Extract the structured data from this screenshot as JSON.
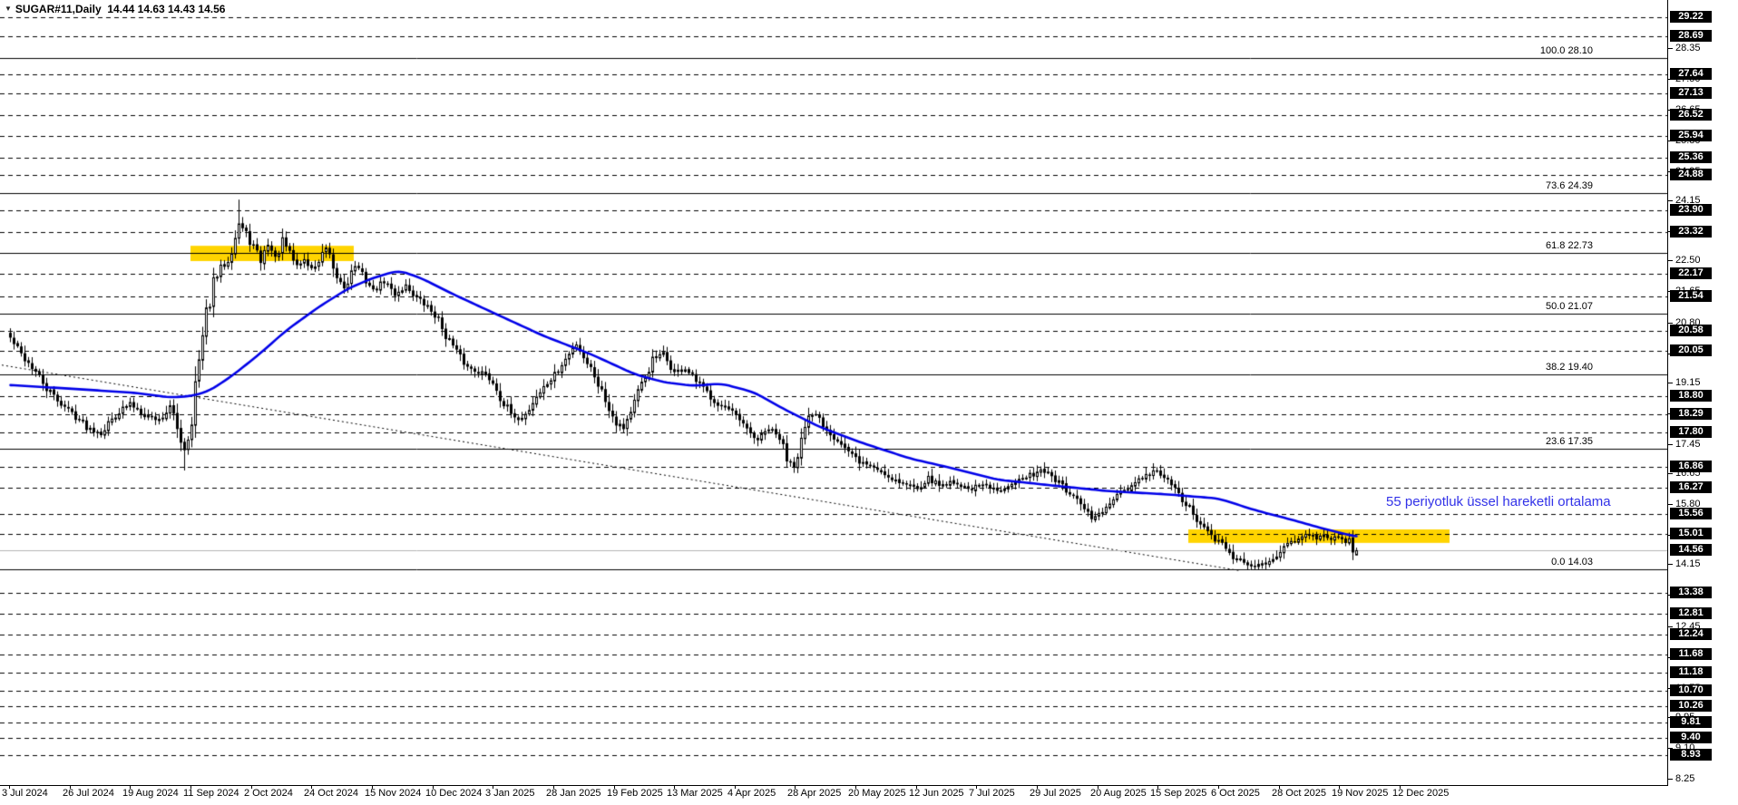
{
  "window": {
    "dropdown_icon": "▼",
    "symbol_label": "SUGAR#11,Daily",
    "ohlc_text": "14.44 14.63 14.43 14.56"
  },
  "annotation": {
    "text": "55 periyotluk üssel hareketli ortalama"
  },
  "colors": {
    "background": "#ffffff",
    "candle_outline": "#000000",
    "candle_up_fill": "#ffffff",
    "candle_down_fill": "#000000",
    "ema_line": "#0000e8",
    "annotation_text": "#3232e8",
    "level_line": "#000000",
    "fib_line": "#000000",
    "highlight_zone": "#ffd400",
    "current_price_line": "#b4b4b4",
    "flag_bg": "#000000",
    "flag_text": "#ffffff",
    "axis_text": "#000000"
  },
  "chart_data": {
    "type": "candlestick",
    "symbol": "SUGAR#11",
    "timeframe": "Daily",
    "title": "SUGAR#11,Daily",
    "last_ohlc": {
      "open": 14.44,
      "high": 14.63,
      "low": 14.43,
      "close": 14.56
    },
    "current_price": 14.56,
    "ylim": [
      8.1,
      29.69
    ],
    "candle_count": 372,
    "x_axis_dates": [
      "3 Jul 2024",
      "26 Jul 2024",
      "19 Aug 2024",
      "11 Sep 2024",
      "2 Oct 2024",
      "24 Oct 2024",
      "15 Nov 2024",
      "10 Dec 2024",
      "3 Jan 2025",
      "28 Jan 2025",
      "19 Feb 2025",
      "13 Mar 2025",
      "4 Apr 2025",
      "28 Apr 2025",
      "20 May 2025",
      "12 Jun 2025",
      "7 Jul 2025",
      "29 Jul 2025",
      "20 Aug 2025",
      "15 Sep 2025",
      "6 Oct 2025",
      "28 Oct 2025",
      "19 Nov 2025",
      "12 Dec 2025"
    ],
    "y_axis_plain_ticks": [
      28.35,
      27.5,
      26.65,
      25.8,
      24.95,
      24.15,
      23.3,
      22.5,
      21.65,
      20.8,
      19.95,
      19.15,
      18.3,
      17.45,
      16.65,
      15.8,
      14.95,
      14.15,
      13.3,
      12.45,
      11.6,
      10.75,
      9.95,
      9.1,
      8.25
    ],
    "horizontal_levels": [
      29.22,
      28.69,
      27.64,
      27.13,
      26.52,
      25.94,
      25.36,
      24.88,
      23.9,
      23.32,
      22.17,
      21.54,
      20.58,
      20.05,
      18.8,
      18.29,
      17.8,
      16.86,
      16.27,
      15.56,
      15.01,
      13.38,
      12.81,
      12.24,
      11.68,
      11.18,
      10.7,
      10.26,
      9.81,
      9.4,
      8.93
    ],
    "fibonacci_levels": [
      {
        "level": "100.0",
        "price": 28.1
      },
      {
        "level": "73.6",
        "price": 24.39
      },
      {
        "level": "61.8",
        "price": 22.73
      },
      {
        "level": "50.0",
        "price": 21.07
      },
      {
        "level": "38.2",
        "price": 19.4
      },
      {
        "level": "23.6",
        "price": 17.35
      },
      {
        "level": "0.0",
        "price": 14.03
      }
    ],
    "highlight_zones": [
      {
        "from_index": 50,
        "to_index": 95,
        "price_top": 22.93,
        "price_bottom": 22.51
      },
      {
        "from_index": 325,
        "to_index": 397,
        "price_top": 15.13,
        "price_bottom": 14.76
      }
    ],
    "trendline": {
      "from_index": -2,
      "from_price": 19.65,
      "to_index": 339,
      "to_price": 14.0,
      "style": "dotted"
    },
    "ema": {
      "period": 55,
      "anchors": [
        [
          0,
          19.1
        ],
        [
          20,
          18.98
        ],
        [
          35,
          18.88
        ],
        [
          44,
          18.76
        ],
        [
          50,
          18.8
        ],
        [
          55,
          18.95
        ],
        [
          61,
          19.35
        ],
        [
          68,
          19.9
        ],
        [
          76,
          20.6
        ],
        [
          85,
          21.25
        ],
        [
          93,
          21.75
        ],
        [
          100,
          22.05
        ],
        [
          107,
          22.25
        ],
        [
          113,
          22.05
        ],
        [
          122,
          21.6
        ],
        [
          135,
          21.0
        ],
        [
          147,
          20.45
        ],
        [
          160,
          19.95
        ],
        [
          172,
          19.4
        ],
        [
          180,
          19.18
        ],
        [
          188,
          19.08
        ],
        [
          196,
          19.14
        ],
        [
          205,
          18.9
        ],
        [
          213,
          18.45
        ],
        [
          223,
          17.95
        ],
        [
          235,
          17.5
        ],
        [
          248,
          17.08
        ],
        [
          258,
          16.85
        ],
        [
          272,
          16.5
        ],
        [
          288,
          16.33
        ],
        [
          303,
          16.18
        ],
        [
          318,
          16.1
        ],
        [
          333,
          15.98
        ],
        [
          343,
          15.66
        ],
        [
          353,
          15.4
        ],
        [
          363,
          15.12
        ],
        [
          371,
          14.93
        ]
      ]
    },
    "candles": {
      "close_anchors": [
        [
          0,
          20.4
        ],
        [
          3,
          19.95
        ],
        [
          6,
          19.6
        ],
        [
          10,
          19.0
        ],
        [
          14,
          18.6
        ],
        [
          17,
          18.35
        ],
        [
          21,
          17.95
        ],
        [
          25,
          17.8
        ],
        [
          29,
          18.3
        ],
        [
          33,
          18.6
        ],
        [
          37,
          18.3
        ],
        [
          41,
          18.15
        ],
        [
          44,
          18.5
        ],
        [
          46,
          17.9
        ],
        [
          48,
          17.35
        ],
        [
          49,
          17.7
        ],
        [
          50,
          18.3
        ],
        [
          51,
          19.1
        ],
        [
          52,
          19.7
        ],
        [
          54,
          21.0
        ],
        [
          56,
          21.9
        ],
        [
          58,
          22.3
        ],
        [
          60,
          22.6
        ],
        [
          62,
          23.2
        ],
        [
          63,
          23.55
        ],
        [
          65,
          23.25
        ],
        [
          67,
          22.9
        ],
        [
          69,
          22.5
        ],
        [
          71,
          23.0
        ],
        [
          73,
          22.6
        ],
        [
          75,
          23.1
        ],
        [
          77,
          22.7
        ],
        [
          79,
          22.4
        ],
        [
          81,
          22.55
        ],
        [
          83,
          22.3
        ],
        [
          85,
          22.5
        ],
        [
          87,
          22.85
        ],
        [
          89,
          22.2
        ],
        [
          92,
          21.8
        ],
        [
          95,
          22.4
        ],
        [
          98,
          22.0
        ],
        [
          100,
          21.7
        ],
        [
          103,
          21.95
        ],
        [
          106,
          21.6
        ],
        [
          109,
          21.85
        ],
        [
          112,
          21.5
        ],
        [
          115,
          21.25
        ],
        [
          117,
          21.05
        ],
        [
          120,
          20.5
        ],
        [
          123,
          20.0
        ],
        [
          126,
          19.6
        ],
        [
          130,
          19.45
        ],
        [
          133,
          19.2
        ],
        [
          136,
          18.6
        ],
        [
          139,
          18.15
        ],
        [
          142,
          18.3
        ],
        [
          145,
          18.8
        ],
        [
          148,
          19.15
        ],
        [
          151,
          19.5
        ],
        [
          154,
          19.95
        ],
        [
          156,
          20.25
        ],
        [
          158,
          19.9
        ],
        [
          161,
          19.4
        ],
        [
          164,
          18.7
        ],
        [
          167,
          18.1
        ],
        [
          169,
          17.95
        ],
        [
          171,
          18.4
        ],
        [
          174,
          19.1
        ],
        [
          177,
          19.8
        ],
        [
          180,
          19.95
        ],
        [
          183,
          19.45
        ],
        [
          186,
          19.55
        ],
        [
          189,
          19.2
        ],
        [
          192,
          18.9
        ],
        [
          195,
          18.6
        ],
        [
          198,
          18.4
        ],
        [
          200,
          18.25
        ],
        [
          203,
          17.85
        ],
        [
          206,
          17.6
        ],
        [
          209,
          17.9
        ],
        [
          212,
          17.65
        ],
        [
          214,
          17.1
        ],
        [
          216,
          16.95
        ],
        [
          218,
          17.6
        ],
        [
          220,
          18.15
        ],
        [
          222,
          18.3
        ],
        [
          225,
          17.9
        ],
        [
          228,
          17.6
        ],
        [
          231,
          17.25
        ],
        [
          234,
          17.0
        ],
        [
          238,
          16.85
        ],
        [
          242,
          16.6
        ],
        [
          246,
          16.4
        ],
        [
          250,
          16.3
        ],
        [
          253,
          16.55
        ],
        [
          256,
          16.35
        ],
        [
          260,
          16.45
        ],
        [
          264,
          16.25
        ],
        [
          268,
          16.35
        ],
        [
          272,
          16.2
        ],
        [
          276,
          16.45
        ],
        [
          280,
          16.55
        ],
        [
          284,
          16.8
        ],
        [
          287,
          16.6
        ],
        [
          291,
          16.2
        ],
        [
          295,
          15.8
        ],
        [
          298,
          15.45
        ],
        [
          301,
          15.6
        ],
        [
          304,
          15.95
        ],
        [
          308,
          16.25
        ],
        [
          312,
          16.55
        ],
        [
          316,
          16.75
        ],
        [
          319,
          16.45
        ],
        [
          322,
          16.1
        ],
        [
          325,
          15.7
        ],
        [
          328,
          15.25
        ],
        [
          331,
          14.95
        ],
        [
          334,
          14.7
        ],
        [
          337,
          14.4
        ],
        [
          340,
          14.2
        ],
        [
          343,
          14.1
        ],
        [
          346,
          14.25
        ],
        [
          349,
          14.45
        ],
        [
          352,
          14.7
        ],
        [
          355,
          14.95
        ],
        [
          358,
          15.0
        ],
        [
          360,
          14.85
        ],
        [
          362,
          14.95
        ],
        [
          364,
          14.9
        ],
        [
          366,
          14.95
        ],
        [
          368,
          14.8
        ],
        [
          369,
          14.95
        ],
        [
          370,
          14.45
        ],
        [
          371,
          14.56
        ]
      ],
      "wick_overrides": [
        {
          "index": 63,
          "high": 24.2
        },
        {
          "index": 48,
          "low": 16.75
        },
        {
          "index": 341,
          "low": 14.03
        },
        {
          "index": 345,
          "low": 14.05
        }
      ]
    }
  }
}
